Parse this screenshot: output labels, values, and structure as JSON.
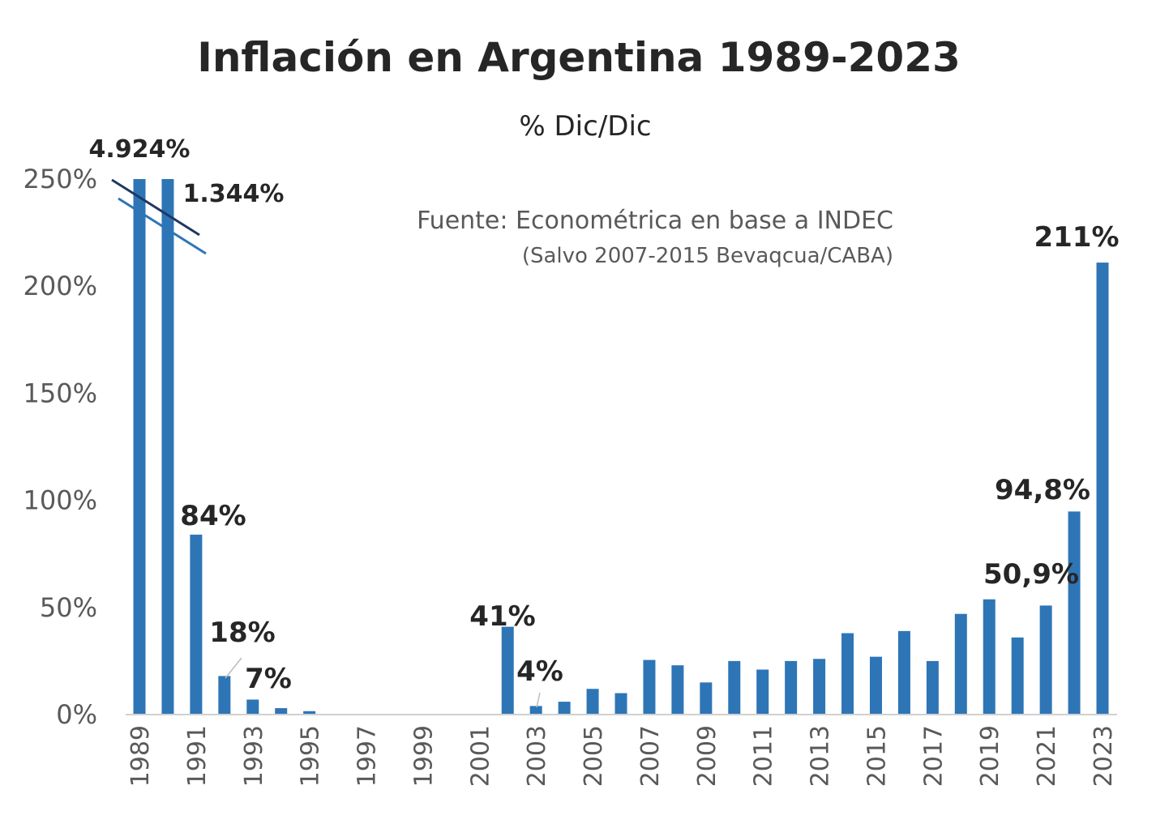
{
  "chart_data": {
    "type": "bar",
    "title": "Inflación en Argentina 1989-2023",
    "subtitle": "% Dic/Dic",
    "annotations": [
      "Fuente: Econométrica en base a INDEC",
      "(Salvo 2007-2015 Bevaqcua/CABA)"
    ],
    "categories": [
      "1989",
      null,
      "1991",
      null,
      "1993",
      null,
      "1995",
      null,
      "1997",
      null,
      "1999",
      null,
      "2001",
      null,
      "2003",
      null,
      "2005",
      null,
      "2007",
      null,
      "2009",
      null,
      "2011",
      null,
      "2013",
      null,
      "2015",
      null,
      "2017",
      null,
      "2019",
      null,
      "2021",
      null,
      "2023"
    ],
    "values": [
      4924,
      1344,
      84,
      18,
      7,
      3,
      1.6,
      0,
      0,
      0,
      0,
      0,
      0,
      41,
      4,
      6,
      12,
      10,
      25.5,
      23,
      15,
      25,
      21,
      25,
      26,
      38,
      27,
      39,
      25,
      47,
      53.8,
      36,
      50.9,
      94.8,
      211
    ],
    "value_labels": [
      "4.924%",
      "1.344%",
      "84%",
      "18%",
      "7%",
      null,
      null,
      null,
      null,
      null,
      null,
      null,
      null,
      "41%",
      "4%",
      null,
      null,
      null,
      null,
      null,
      null,
      null,
      null,
      null,
      null,
      null,
      null,
      null,
      null,
      null,
      null,
      null,
      "50,9%",
      "94,8%",
      "211%"
    ],
    "color": "#2e75b6",
    "ylim": [
      0,
      250
    ],
    "yticks": [
      {
        "value": 0,
        "label": "0%"
      },
      {
        "value": 50,
        "label": "50%"
      },
      {
        "value": 100,
        "label": "100%"
      },
      {
        "value": 150,
        "label": "150%"
      },
      {
        "value": 200,
        "label": "200%"
      },
      {
        "value": 250,
        "label": "250%"
      }
    ],
    "grid": false
  }
}
